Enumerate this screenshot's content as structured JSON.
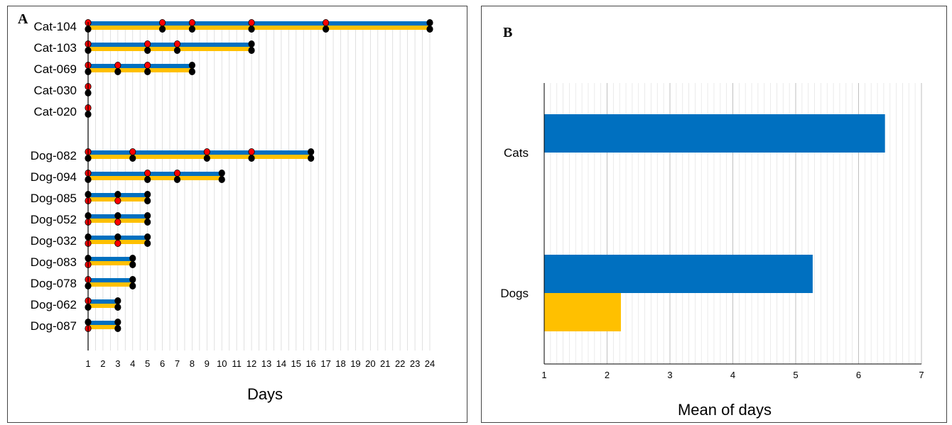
{
  "panels": {
    "a_label": "A",
    "b_label": "B"
  },
  "chart_data": [
    {
      "type": "line",
      "panel": "A",
      "xlabel": "Days",
      "xlim": [
        1,
        24
      ],
      "x_ticks": [
        "1",
        "2",
        "3",
        "4",
        "5",
        "6",
        "7",
        "8",
        "9",
        "10",
        "11",
        "12",
        "13",
        "14",
        "15",
        "16",
        "17",
        "18",
        "19",
        "20",
        "21",
        "22",
        "23",
        "24"
      ],
      "grid": true,
      "colors": {
        "blue": "#0070C0",
        "yellow": "#FFC000",
        "red": "#FF0000",
        "black": "#000000"
      },
      "rows": [
        {
          "label": "Cat-104",
          "blue_end": 24,
          "yellow_end": 24,
          "blue_markers": [
            [
              1,
              "red"
            ],
            [
              6,
              "red"
            ],
            [
              8,
              "red"
            ],
            [
              12,
              "red"
            ],
            [
              17,
              "red"
            ],
            [
              24,
              "black"
            ]
          ],
          "yellow_markers": [
            [
              1,
              "black"
            ],
            [
              6,
              "black"
            ],
            [
              8,
              "black"
            ],
            [
              12,
              "black"
            ],
            [
              17,
              "black"
            ],
            [
              24,
              "black"
            ]
          ]
        },
        {
          "label": "Cat-103",
          "blue_end": 12,
          "yellow_end": 12,
          "blue_markers": [
            [
              1,
              "red"
            ],
            [
              5,
              "red"
            ],
            [
              7,
              "red"
            ],
            [
              12,
              "black"
            ]
          ],
          "yellow_markers": [
            [
              1,
              "black"
            ],
            [
              5,
              "black"
            ],
            [
              7,
              "black"
            ],
            [
              12,
              "black"
            ]
          ]
        },
        {
          "label": "Cat-069",
          "blue_end": 8,
          "yellow_end": 8,
          "blue_markers": [
            [
              1,
              "red"
            ],
            [
              3,
              "red"
            ],
            [
              5,
              "red"
            ],
            [
              8,
              "black"
            ]
          ],
          "yellow_markers": [
            [
              1,
              "black"
            ],
            [
              3,
              "black"
            ],
            [
              5,
              "black"
            ],
            [
              8,
              "black"
            ]
          ]
        },
        {
          "label": "Cat-030",
          "blue_end": 1,
          "yellow_end": 1,
          "blue_markers": [
            [
              1,
              "red"
            ]
          ],
          "yellow_markers": [
            [
              1,
              "black"
            ]
          ]
        },
        {
          "label": "Cat-020",
          "blue_end": 1,
          "yellow_end": 1,
          "blue_markers": [
            [
              1,
              "red"
            ]
          ],
          "yellow_markers": [
            [
              1,
              "black"
            ]
          ]
        },
        {
          "label": "Dog-082",
          "blue_end": 16,
          "yellow_end": 16,
          "blue_markers": [
            [
              1,
              "red"
            ],
            [
              4,
              "red"
            ],
            [
              9,
              "red"
            ],
            [
              12,
              "red"
            ],
            [
              16,
              "black"
            ]
          ],
          "yellow_markers": [
            [
              1,
              "black"
            ],
            [
              4,
              "black"
            ],
            [
              9,
              "black"
            ],
            [
              12,
              "black"
            ],
            [
              16,
              "black"
            ]
          ]
        },
        {
          "label": "Dog-094",
          "blue_end": 10,
          "yellow_end": 10,
          "blue_markers": [
            [
              1,
              "red"
            ],
            [
              5,
              "red"
            ],
            [
              7,
              "red"
            ],
            [
              10,
              "black"
            ]
          ],
          "yellow_markers": [
            [
              1,
              "black"
            ],
            [
              5,
              "black"
            ],
            [
              7,
              "black"
            ],
            [
              10,
              "black"
            ]
          ]
        },
        {
          "label": "Dog-085",
          "blue_end": 5,
          "yellow_end": 5,
          "blue_markers": [
            [
              1,
              "black"
            ],
            [
              3,
              "black"
            ],
            [
              5,
              "black"
            ]
          ],
          "yellow_markers": [
            [
              1,
              "red"
            ],
            [
              3,
              "red"
            ],
            [
              5,
              "black"
            ]
          ]
        },
        {
          "label": "Dog-052",
          "blue_end": 5,
          "yellow_end": 5,
          "blue_markers": [
            [
              1,
              "black"
            ],
            [
              3,
              "black"
            ],
            [
              5,
              "black"
            ]
          ],
          "yellow_markers": [
            [
              1,
              "red"
            ],
            [
              3,
              "red"
            ],
            [
              5,
              "black"
            ]
          ]
        },
        {
          "label": "Dog-032",
          "blue_end": 5,
          "yellow_end": 5,
          "blue_markers": [
            [
              1,
              "black"
            ],
            [
              3,
              "black"
            ],
            [
              5,
              "black"
            ]
          ],
          "yellow_markers": [
            [
              1,
              "red"
            ],
            [
              3,
              "red"
            ],
            [
              5,
              "black"
            ]
          ]
        },
        {
          "label": "Dog-083",
          "blue_end": 4,
          "yellow_end": 4,
          "blue_markers": [
            [
              1,
              "black"
            ],
            [
              4,
              "black"
            ]
          ],
          "yellow_markers": [
            [
              1,
              "red"
            ],
            [
              4,
              "black"
            ]
          ]
        },
        {
          "label": "Dog-078",
          "blue_end": 4,
          "yellow_end": 4,
          "blue_markers": [
            [
              1,
              "red"
            ],
            [
              4,
              "black"
            ]
          ],
          "yellow_markers": [
            [
              1,
              "black"
            ],
            [
              4,
              "black"
            ]
          ]
        },
        {
          "label": "Dog-062",
          "blue_end": 3,
          "yellow_end": 3,
          "blue_markers": [
            [
              1,
              "red"
            ],
            [
              3,
              "black"
            ]
          ],
          "yellow_markers": [
            [
              1,
              "black"
            ],
            [
              3,
              "black"
            ]
          ]
        },
        {
          "label": "Dog-087",
          "blue_end": 3,
          "yellow_end": 3,
          "blue_markers": [
            [
              1,
              "black"
            ],
            [
              3,
              "black"
            ]
          ],
          "yellow_markers": [
            [
              1,
              "red"
            ],
            [
              3,
              "black"
            ]
          ]
        }
      ]
    },
    {
      "type": "bar",
      "panel": "B",
      "orientation": "horizontal",
      "xlabel": "Mean of days",
      "xlim": [
        1,
        7
      ],
      "x_ticks": [
        "1",
        "2",
        "3",
        "4",
        "5",
        "6",
        "7"
      ],
      "grid": true,
      "categories": [
        "Cats",
        "Dogs"
      ],
      "series": [
        {
          "color": "#0070C0",
          "values": [
            6.42,
            5.27
          ]
        },
        {
          "color": "#FFC000",
          "values": [
            null,
            2.22
          ]
        }
      ]
    }
  ]
}
